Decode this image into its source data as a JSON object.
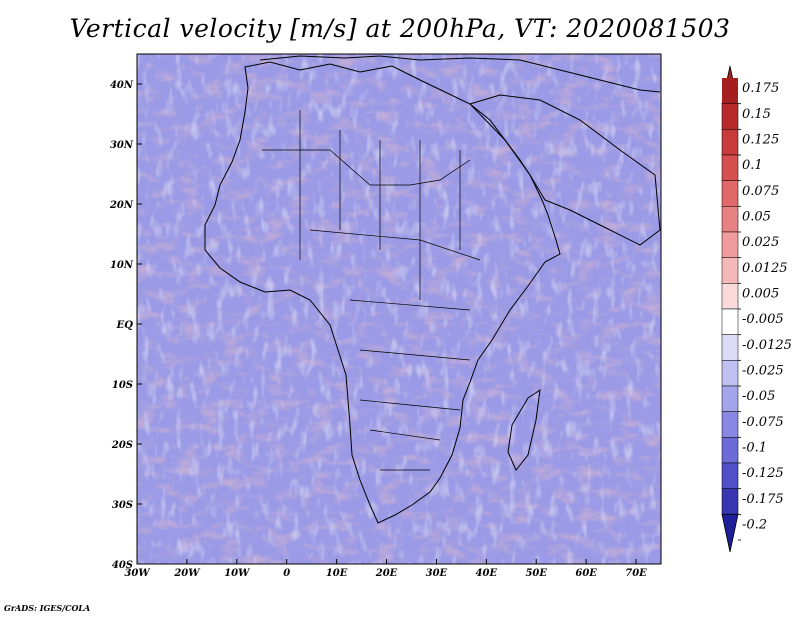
{
  "title": "Vertical velocity [m/s] at 200hPa, VT: 2020081503",
  "credit": "GrADS: IGES/COLA",
  "map": {
    "x_ticks": [
      "30W",
      "20W",
      "10W",
      "0",
      "10E",
      "20E",
      "30E",
      "40E",
      "50E",
      "60E",
      "70E"
    ],
    "y_ticks": [
      "40N",
      "30N",
      "20N",
      "10N",
      "EQ",
      "10S",
      "20S",
      "30S",
      "40S"
    ],
    "lon_range": [
      -30,
      75
    ],
    "lat_range": [
      -40,
      45
    ]
  },
  "colorbar": {
    "labels": [
      "0.175",
      "0.15",
      "0.125",
      "0.1",
      "0.075",
      "0.05",
      "0.025",
      "0.0125",
      "0.005",
      "-0.005",
      "-0.0125",
      "-0.025",
      "-0.05",
      "-0.075",
      "-0.1",
      "-0.125",
      "-0.175",
      "-0.2"
    ],
    "colors": [
      "#a51f1f",
      "#b82a2a",
      "#c83b3b",
      "#d65050",
      "#e06868",
      "#e88282",
      "#f09c9c",
      "#f5b8b8",
      "#fadada",
      "#ffffff",
      "#dcdcf8",
      "#c0c0f2",
      "#a4a4ea",
      "#8888e2",
      "#6c6cd8",
      "#5050c8",
      "#3636b0",
      "#1f1f99"
    ]
  }
}
